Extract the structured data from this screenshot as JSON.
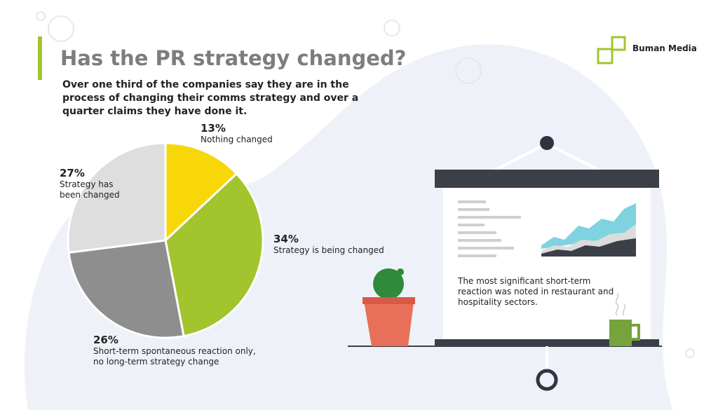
{
  "brand": "Buman Media",
  "chart_data": {
    "type": "pie",
    "title": "Has the PR strategy changed?",
    "subtitle": "Over one third of the companies say they are in the process of changing their comms strategy and over a quarter claims they have done it.",
    "categories": [
      "Nothing changed",
      "Strategy is being changed",
      "Short-term spontaneous reaction only, no long-term strategy change",
      "Strategy has been changed"
    ],
    "values": [
      13,
      34,
      26,
      27
    ],
    "value_labels": [
      "13%",
      "34%",
      "26%",
      "27%"
    ],
    "colors": [
      "#f7d708",
      "#a2c42c",
      "#8e8e8e",
      "#dedede"
    ]
  },
  "note": "The most significant short-term reaction was noted in restaurant and hospitality sectors."
}
